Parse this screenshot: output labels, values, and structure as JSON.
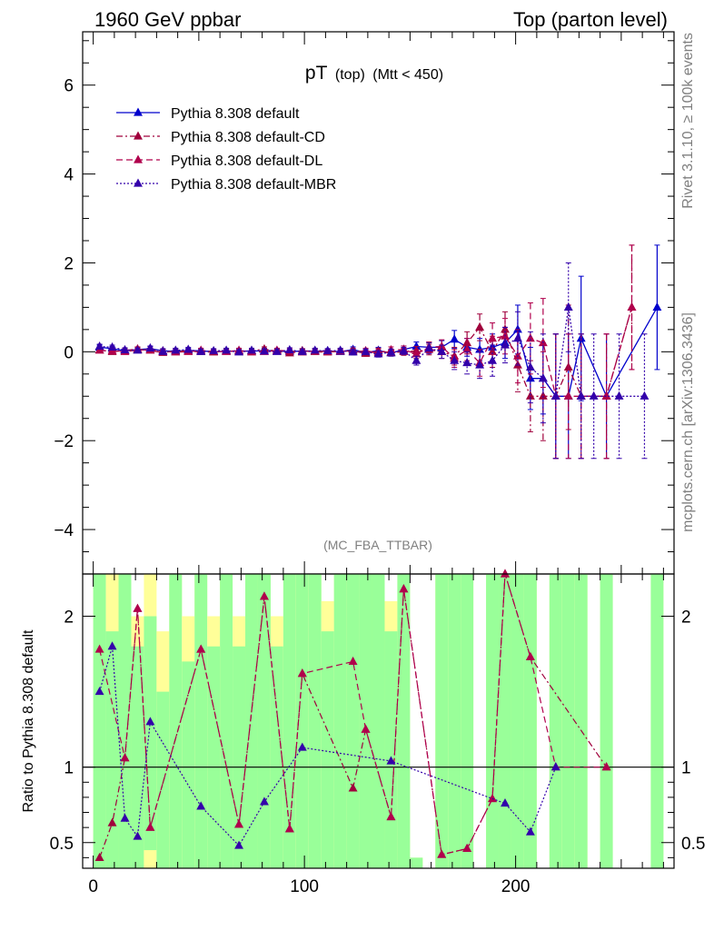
{
  "header": {
    "left": "1960 GeV ppbar",
    "right": "Top (parton level)"
  },
  "side_labels": {
    "rivet": "Rivet 3.1.10, ≥ 100k events",
    "mcplots": "mcplots.cern.ch [arXiv:1306.3436]"
  },
  "plot_title": {
    "main": "pT",
    "sub1": "(top)",
    "sub2": "(Mtt < 450)"
  },
  "analysis_label": "(MC_FBA_TTBAR)",
  "ratio_ylabel": "Ratio to Pythia 8.308 default",
  "colors": {
    "default": "#0000cc",
    "cd": "#a0003c",
    "dl": "#b0004c",
    "mbr": "#3300aa",
    "band_green": "#99ff99",
    "band_yellow": "#ffff99"
  },
  "chart_data": [
    {
      "type": "line",
      "panel": "main",
      "title": "pT (top) (Mtt < 450)",
      "xlim": [
        -5,
        275
      ],
      "ylim": [
        -5,
        7.2
      ],
      "yticks": [
        -4,
        -2,
        0,
        2,
        4,
        6
      ],
      "ytick_labels": [
        "−4",
        "−2",
        "0",
        "2",
        "4",
        "6"
      ],
      "legend_position": "top-left",
      "series": [
        {
          "name": "Pythia 8.308 default",
          "style": "solid",
          "color": "#0000cc",
          "x": [
            3,
            9,
            15,
            21,
            27,
            33,
            39,
            45,
            51,
            57,
            63,
            69,
            75,
            81,
            87,
            93,
            99,
            105,
            111,
            117,
            123,
            129,
            135,
            141,
            147,
            153,
            159,
            165,
            171,
            177,
            183,
            189,
            195,
            201,
            207,
            213,
            219,
            225,
            231,
            243,
            267
          ],
          "y": [
            0.1,
            0.07,
            0.02,
            0.05,
            0.07,
            0.02,
            0.01,
            0.03,
            0.02,
            0.0,
            0.01,
            0.02,
            0.01,
            0.03,
            0.02,
            0.0,
            0.02,
            0.01,
            0.02,
            0.0,
            0.05,
            -0.02,
            0.03,
            -0.03,
            0.05,
            0.12,
            0.1,
            0.1,
            0.28,
            0.1,
            0.05,
            0.1,
            0.2,
            0.5,
            -0.6,
            -0.6,
            -1.0,
            -1.0,
            0.3,
            -1.0,
            1.0
          ],
          "err": [
            0.05,
            0.05,
            0.05,
            0.05,
            0.05,
            0.05,
            0.05,
            0.05,
            0.05,
            0.05,
            0.05,
            0.05,
            0.05,
            0.05,
            0.05,
            0.05,
            0.05,
            0.05,
            0.05,
            0.05,
            0.06,
            0.06,
            0.07,
            0.07,
            0.08,
            0.1,
            0.12,
            0.15,
            0.2,
            0.2,
            0.25,
            0.3,
            0.35,
            0.55,
            0.7,
            0.8,
            1.4,
            1.4,
            1.4,
            1.4,
            1.4
          ]
        },
        {
          "name": "Pythia 8.308 default-CD",
          "style": "dashdot",
          "color": "#a0003c",
          "x": [
            3,
            9,
            15,
            21,
            27,
            33,
            39,
            45,
            51,
            57,
            63,
            69,
            75,
            81,
            87,
            93,
            99,
            105,
            111,
            117,
            123,
            129,
            135,
            141,
            147,
            153,
            159,
            165,
            171,
            177,
            183,
            189,
            195,
            201,
            207,
            213,
            219,
            225,
            231,
            243,
            255
          ],
          "y": [
            0.04,
            0.0,
            0.03,
            0.06,
            0.03,
            -0.02,
            0.02,
            0.01,
            0.0,
            -0.01,
            0.02,
            0.0,
            0.02,
            0.06,
            0.01,
            -0.03,
            0.02,
            0.0,
            -0.01,
            0.01,
            0.02,
            -0.04,
            0.01,
            -0.02,
            0.0,
            0.02,
            0.05,
            0.0,
            -0.1,
            0.2,
            0.55,
            0.0,
            0.5,
            -0.3,
            -1.0,
            -1.0,
            -1.0,
            -0.35,
            -1.0,
            -1.0,
            1.0
          ],
          "err": [
            0.05,
            0.05,
            0.05,
            0.05,
            0.05,
            0.05,
            0.05,
            0.05,
            0.05,
            0.05,
            0.05,
            0.05,
            0.05,
            0.05,
            0.05,
            0.05,
            0.05,
            0.05,
            0.05,
            0.05,
            0.06,
            0.06,
            0.07,
            0.07,
            0.08,
            0.1,
            0.12,
            0.15,
            0.2,
            0.25,
            0.3,
            0.35,
            0.4,
            0.6,
            0.8,
            1.0,
            1.4,
            1.4,
            1.4,
            1.4,
            1.4
          ]
        },
        {
          "name": "Pythia 8.308 default-DL",
          "style": "dashed",
          "color": "#b0004c",
          "x": [
            3,
            9,
            15,
            21,
            27,
            33,
            39,
            45,
            51,
            57,
            63,
            69,
            75,
            81,
            87,
            93,
            99,
            105,
            111,
            117,
            123,
            129,
            135,
            141,
            147,
            153,
            159,
            165,
            171,
            177,
            183,
            189,
            195,
            201,
            207,
            213,
            219,
            225,
            231,
            243,
            255
          ],
          "y": [
            0.03,
            0.02,
            0.0,
            0.04,
            0.04,
            0.01,
            -0.01,
            0.0,
            0.03,
            0.01,
            0.0,
            0.03,
            -0.01,
            0.0,
            0.03,
            0.02,
            -0.01,
            0.02,
            0.0,
            0.02,
            0.0,
            0.02,
            -0.02,
            0.04,
            0.05,
            -0.05,
            0.1,
            0.12,
            -0.15,
            0.05,
            -0.25,
            0.3,
            0.35,
            -0.1,
            0.3,
            0.2,
            -1.0,
            -1.0,
            -1.0,
            -1.0,
            1.0
          ],
          "err": [
            0.05,
            0.05,
            0.05,
            0.05,
            0.05,
            0.05,
            0.05,
            0.05,
            0.05,
            0.05,
            0.05,
            0.05,
            0.05,
            0.05,
            0.05,
            0.05,
            0.05,
            0.05,
            0.05,
            0.05,
            0.06,
            0.06,
            0.07,
            0.07,
            0.08,
            0.1,
            0.12,
            0.15,
            0.2,
            0.25,
            0.3,
            0.35,
            0.4,
            0.6,
            0.8,
            1.0,
            1.4,
            1.4,
            1.4,
            1.4,
            1.4
          ]
        },
        {
          "name": "Pythia 8.308 default-MBR",
          "style": "dotted",
          "color": "#3300aa",
          "x": [
            3,
            9,
            15,
            21,
            27,
            33,
            39,
            45,
            51,
            57,
            63,
            69,
            75,
            81,
            87,
            93,
            99,
            105,
            111,
            117,
            123,
            129,
            135,
            141,
            147,
            153,
            159,
            165,
            171,
            177,
            183,
            189,
            195,
            201,
            207,
            213,
            219,
            225,
            231,
            237,
            249,
            261
          ],
          "y": [
            0.12,
            0.1,
            0.04,
            0.03,
            0.08,
            0.0,
            0.03,
            0.05,
            0.0,
            0.02,
            0.03,
            -0.01,
            0.03,
            0.01,
            0.0,
            0.04,
            0.0,
            0.03,
            0.02,
            0.03,
            -0.01,
            0.0,
            -0.05,
            -0.01,
            0.02,
            -0.2,
            0.08,
            0.0,
            -0.2,
            -0.25,
            -0.3,
            -0.2,
            0.15,
            0.3,
            -0.35,
            -0.6,
            -1.0,
            1.0,
            -1.0,
            -1.0,
            -1.0,
            -1.0
          ],
          "err": [
            0.05,
            0.05,
            0.05,
            0.05,
            0.05,
            0.05,
            0.05,
            0.05,
            0.05,
            0.05,
            0.05,
            0.05,
            0.05,
            0.05,
            0.05,
            0.05,
            0.05,
            0.05,
            0.05,
            0.05,
            0.06,
            0.06,
            0.07,
            0.07,
            0.08,
            0.1,
            0.12,
            0.15,
            0.2,
            0.25,
            0.3,
            0.35,
            0.4,
            0.6,
            0.8,
            1.0,
            1.4,
            1.0,
            1.4,
            1.4,
            1.4,
            1.4
          ]
        }
      ]
    },
    {
      "type": "line",
      "panel": "ratio",
      "ylabel": "Ratio to Pythia 8.308 default",
      "xlim": [
        -5,
        275
      ],
      "ylim": [
        0.33,
        2.28
      ],
      "xticks": [
        0,
        100,
        200
      ],
      "yticks": [
        0.5,
        1,
        2
      ],
      "ytick_labels": [
        "0.5",
        "1",
        "2"
      ],
      "reference_line": 1,
      "band": {
        "x_edges": [
          0,
          6,
          12,
          18,
          24,
          30,
          36,
          42,
          48,
          54,
          60,
          66,
          72,
          78,
          84,
          90,
          96,
          102,
          108,
          114,
          120,
          126,
          132,
          138,
          144,
          150,
          156,
          162,
          168,
          174,
          180,
          186,
          192,
          198,
          204,
          210,
          216,
          222,
          228,
          234,
          240,
          246,
          252,
          258,
          264,
          270
        ],
        "green_top": [
          2.28,
          1.9,
          2.28,
          1.8,
          2.0,
          1.5,
          2.28,
          1.7,
          2.28,
          1.8,
          2.28,
          1.8,
          2.28,
          2.28,
          1.8,
          2.28,
          2.28,
          2.28,
          1.9,
          2.28,
          2.28,
          2.28,
          2.28,
          1.9,
          2.28,
          0.4,
          0.33,
          2.28,
          2.28,
          2.28,
          0.33,
          2.28,
          2.28,
          2.28,
          2.28,
          0.33,
          2.28,
          2.28,
          2.28,
          0.33,
          2.28,
          0.33,
          0.33,
          0.33,
          2.28
        ],
        "green_bottom": [
          0.33,
          0.33,
          0.33,
          0.33,
          0.45,
          0.33,
          0.33,
          0.33,
          0.33,
          0.33,
          0.33,
          0.33,
          0.33,
          0.33,
          0.33,
          0.33,
          0.33,
          0.33,
          0.33,
          0.33,
          0.33,
          0.33,
          0.33,
          0.33,
          0.33,
          0.33,
          0.33,
          0.33,
          0.33,
          0.33,
          0.33,
          0.33,
          0.33,
          0.33,
          0.33,
          0.33,
          0.33,
          0.33,
          0.33,
          0.33,
          0.33,
          0.33,
          0.33,
          0.33,
          0.33
        ],
        "yellow_top": [
          2.28,
          2.28,
          2.28,
          2.0,
          2.28,
          1.9,
          2.28,
          2.0,
          2.28,
          2.0,
          2.28,
          2.0,
          2.28,
          2.28,
          2.0,
          2.28,
          2.28,
          2.28,
          2.1,
          2.28,
          2.28,
          2.28,
          2.28,
          2.1,
          2.28,
          0.4,
          0.33,
          2.28,
          2.28,
          2.28,
          0.33,
          2.28,
          2.28,
          2.28,
          2.28,
          0.33,
          2.28,
          2.28,
          2.28,
          0.33,
          2.28,
          0.33,
          0.33,
          0.33,
          2.28
        ],
        "yellow_bottom": [
          0.33,
          0.33,
          0.33,
          0.33,
          0.33,
          0.33,
          0.33,
          0.33,
          0.33,
          0.33,
          0.33,
          0.33,
          0.33,
          0.33,
          0.33,
          0.33,
          0.33,
          0.33,
          0.33,
          0.33,
          0.33,
          0.33,
          0.33,
          0.33,
          0.33,
          0.33,
          0.33,
          0.33,
          0.33,
          0.33,
          0.33,
          0.33,
          0.33,
          0.33,
          0.33,
          0.33,
          0.33,
          0.33,
          0.33,
          0.33,
          0.33,
          0.33,
          0.33,
          0.33,
          0.33
        ]
      },
      "series": [
        {
          "name": "Pythia 8.308 default-CD",
          "style": "dashdot",
          "color": "#a0003c",
          "x": [
            3,
            9,
            15,
            21,
            27,
            51,
            69,
            81,
            93,
            99,
            123,
            129,
            141,
            147,
            165,
            177,
            189,
            195,
            207,
            243
          ],
          "y": [
            0.4,
            0.63,
            1.06,
            2.05,
            0.6,
            1.78,
            0.62,
            2.13,
            0.59,
            1.62,
            0.86,
            1.25,
            0.67,
            2.18,
            0.42,
            0.46,
            0.79,
            2.28,
            1.73,
            1.0
          ]
        },
        {
          "name": "Pythia 8.308 default-DL",
          "style": "dashed",
          "color": "#b0004c",
          "x": [
            3,
            15,
            21,
            27,
            51,
            69,
            81,
            93,
            99,
            123,
            129,
            141,
            147,
            165,
            177,
            189,
            195,
            207,
            219,
            243
          ],
          "y": [
            1.78,
            1.06,
            2.05,
            0.6,
            1.78,
            0.62,
            2.13,
            0.59,
            1.62,
            1.7,
            1.25,
            0.67,
            2.18,
            0.42,
            0.46,
            0.79,
            2.28,
            1.73,
            1.0,
            1.0
          ]
        },
        {
          "name": "Pythia 8.308 default-MBR",
          "style": "dotted",
          "color": "#3300aa",
          "x": [
            3,
            9,
            15,
            21,
            27,
            51,
            69,
            81,
            99,
            141,
            195,
            207,
            219
          ],
          "y": [
            1.5,
            1.8,
            0.66,
            0.54,
            1.3,
            0.74,
            0.48,
            0.77,
            1.13,
            1.04,
            0.76,
            0.57,
            1.0
          ]
        }
      ]
    }
  ]
}
